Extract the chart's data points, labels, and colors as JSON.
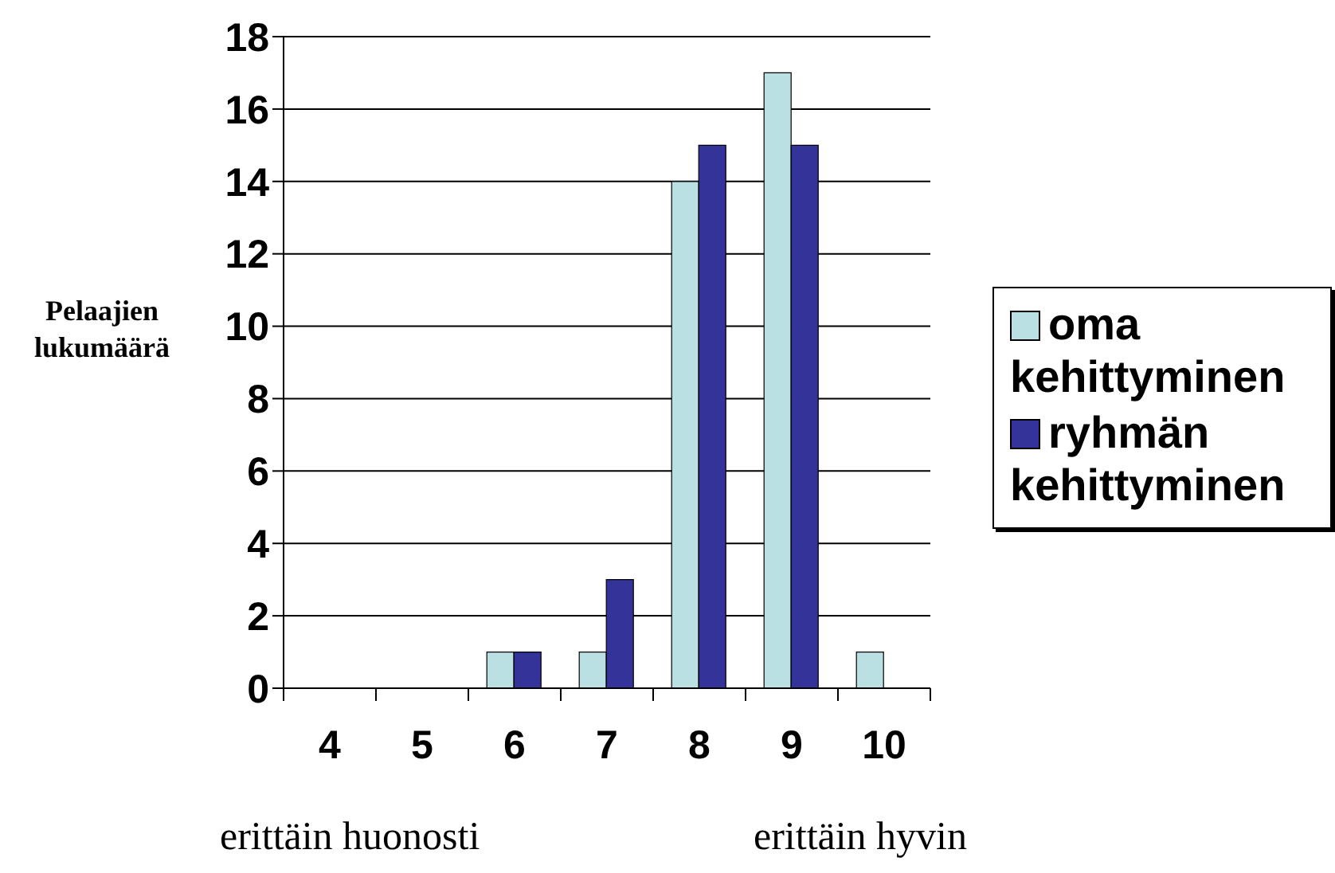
{
  "chart_data": {
    "type": "bar",
    "ylabel": "Pelaajien lukumäärä",
    "categories": [
      "4",
      "5",
      "6",
      "7",
      "8",
      "9",
      "10"
    ],
    "series": [
      {
        "name": "oma kehittyminen",
        "color": "#bbe0e3",
        "values": [
          0,
          0,
          1,
          1,
          14,
          17,
          1
        ]
      },
      {
        "name": "ryhmän kehittyminen",
        "color": "#333399",
        "values": [
          0,
          0,
          1,
          3,
          15,
          15,
          0
        ]
      }
    ],
    "ylim": [
      0,
      18
    ],
    "yticks": [
      0,
      2,
      4,
      6,
      8,
      10,
      12,
      14,
      16,
      18
    ],
    "grid": "y",
    "legend": "right",
    "annotations": [
      "erittäin huonosti",
      "erittäin hyvin"
    ]
  }
}
